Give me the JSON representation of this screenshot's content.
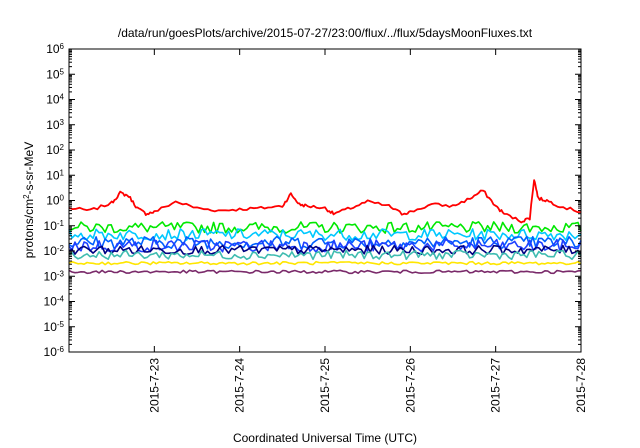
{
  "chart_data": {
    "type": "line",
    "title": "/data/run/goesPlots/archive/2015-07-27/23:00/flux/../flux/5daysMoonFluxes.txt",
    "xlabel": "Coordinated Universal Time (UTC)",
    "ylabel_parts": [
      "protons/cm",
      "2",
      "-s-sr-MeV"
    ],
    "y_scale": "log",
    "ylim": [
      1e-06,
      1000000.0
    ],
    "xlim": [
      0,
      6
    ],
    "grid": false,
    "legend": "none",
    "y_ticks": [
      {
        "exp": -6,
        "base": "10",
        "sup": "-6"
      },
      {
        "exp": -5,
        "base": "10",
        "sup": "-5"
      },
      {
        "exp": -4,
        "base": "10",
        "sup": "-4"
      },
      {
        "exp": -3,
        "base": "10",
        "sup": "-3"
      },
      {
        "exp": -2,
        "base": "10",
        "sup": "-2"
      },
      {
        "exp": -1,
        "base": "10",
        "sup": "-1"
      },
      {
        "exp": 0,
        "base": "10",
        "sup": "0"
      },
      {
        "exp": 1,
        "base": "10",
        "sup": "1"
      },
      {
        "exp": 2,
        "base": "10",
        "sup": "2"
      },
      {
        "exp": 3,
        "base": "10",
        "sup": "3"
      },
      {
        "exp": 4,
        "base": "10",
        "sup": "4"
      },
      {
        "exp": 5,
        "base": "10",
        "sup": "5"
      },
      {
        "exp": 6,
        "base": "10",
        "sup": "6"
      }
    ],
    "x_ticks": [
      {
        "x": 1,
        "label": "2015-7-23"
      },
      {
        "x": 2,
        "label": "2015-7-24"
      },
      {
        "x": 3,
        "label": "2015-7-25"
      },
      {
        "x": 4,
        "label": "2015-7-26"
      },
      {
        "x": 5,
        "label": "2015-7-27"
      },
      {
        "x": 6,
        "label": "2015-7-28"
      }
    ],
    "series": [
      {
        "color": "#ff0000",
        "x": [
          0.0,
          0.25,
          0.5,
          0.6,
          0.7,
          0.8,
          0.9,
          1.0,
          1.25,
          1.5,
          1.75,
          2.0,
          2.25,
          2.5,
          2.6,
          2.7,
          2.8,
          3.0,
          3.1,
          3.3,
          3.5,
          3.75,
          3.9,
          4.0,
          4.25,
          4.5,
          4.7,
          4.85,
          5.0,
          5.1,
          5.3,
          5.4,
          5.45,
          5.5,
          5.6,
          5.75,
          6.0
        ],
        "y": [
          0.5,
          0.4,
          0.8,
          2.0,
          1.5,
          0.5,
          0.3,
          0.35,
          0.9,
          0.5,
          0.4,
          0.45,
          0.5,
          0.6,
          1.8,
          0.7,
          0.6,
          0.5,
          0.3,
          0.5,
          0.9,
          0.6,
          0.3,
          0.35,
          0.7,
          0.6,
          1.2,
          2.5,
          0.6,
          0.3,
          0.15,
          0.2,
          7.0,
          1.2,
          1.0,
          0.6,
          0.35
        ]
      },
      {
        "color": "#00e800",
        "level": 0.085,
        "spread": 0.45
      },
      {
        "color": "#00c8ff",
        "level": 0.045,
        "spread": 0.45
      },
      {
        "color": "#0060ff",
        "level": 0.022,
        "spread": 0.5
      },
      {
        "color": "#1f3fff",
        "level": 0.016,
        "spread": 0.5
      },
      {
        "color": "#000080",
        "level": 0.011,
        "spread": 0.35
      },
      {
        "color": "#3fbcb0",
        "level": 0.007,
        "spread": 0.35
      },
      {
        "color": "#ffe600",
        "level": 0.0033,
        "spread": 0.12
      },
      {
        "color": "#7a2a6a",
        "level": 0.0015,
        "spread": 0.12
      }
    ]
  }
}
